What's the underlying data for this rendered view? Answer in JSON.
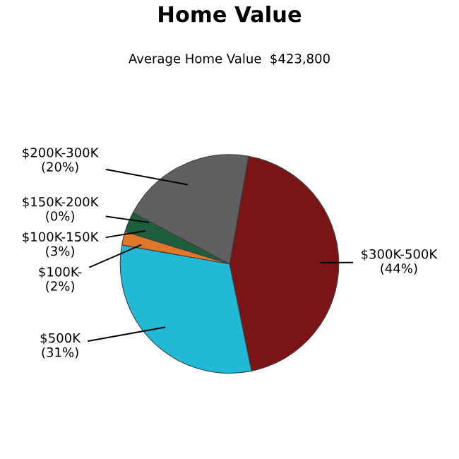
{
  "chart_data": {
    "type": "pie",
    "title": "Home Value",
    "subtitle": "Average Home Value  $423,800",
    "categories": [
      "$300K-500K",
      "$500K",
      "$100K-",
      "$100K-150K",
      "$150K-200K",
      "$200K-300K"
    ],
    "values": [
      44,
      31,
      2,
      3,
      0,
      20
    ],
    "colors": [
      "#7a1416",
      "#22b9d6",
      "#e0782a",
      "#1d5e3c",
      "#2e7d55",
      "#606060"
    ],
    "value_labels": [
      "(44%)",
      "(31%)",
      "(2%)",
      "(3%)",
      "(0%)",
      "(20%)"
    ]
  }
}
